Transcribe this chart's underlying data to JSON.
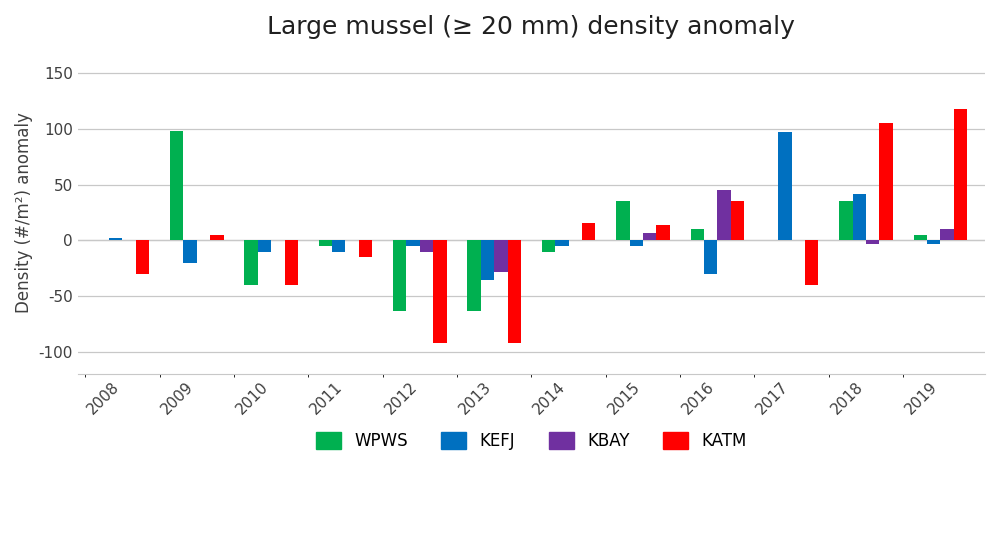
{
  "title": "Large mussel (≥ 20 mm) density anomaly",
  "ylabel": "Density (#/m²) anomaly",
  "years": [
    2008,
    2009,
    2010,
    2011,
    2012,
    2013,
    2014,
    2015,
    2016,
    2017,
    2018,
    2019
  ],
  "series": {
    "WPWS": {
      "color": "#00B050",
      "values": [
        null,
        98,
        -40,
        -5,
        -63,
        -63,
        -10,
        35,
        10,
        null,
        35,
        5
      ]
    },
    "KEFJ": {
      "color": "#0070C0",
      "values": [
        2,
        -20,
        -10,
        -10,
        -5,
        -35,
        -5,
        -5,
        -30,
        97,
        42,
        -3
      ]
    },
    "KBAY": {
      "color": "#7030A0",
      "values": [
        null,
        null,
        null,
        null,
        -10,
        -28,
        null,
        7,
        45,
        null,
        -3,
        10
      ]
    },
    "KATM": {
      "color": "#FF0000",
      "values": [
        -30,
        5,
        -40,
        -15,
        -92,
        -92,
        16,
        14,
        35,
        -40,
        105,
        118
      ]
    }
  },
  "ylim": [
    -120,
    170
  ],
  "yticks": [
    -100,
    -50,
    0,
    50,
    100,
    150
  ],
  "bg_color": "#FFFFFF",
  "grid_color": "#C8C8C8",
  "bar_width": 0.18,
  "legend_labels": [
    "WPWS",
    "KEFJ",
    "KBAY",
    "KATM"
  ],
  "legend_colors": [
    "#00B050",
    "#0070C0",
    "#7030A0",
    "#FF0000"
  ]
}
